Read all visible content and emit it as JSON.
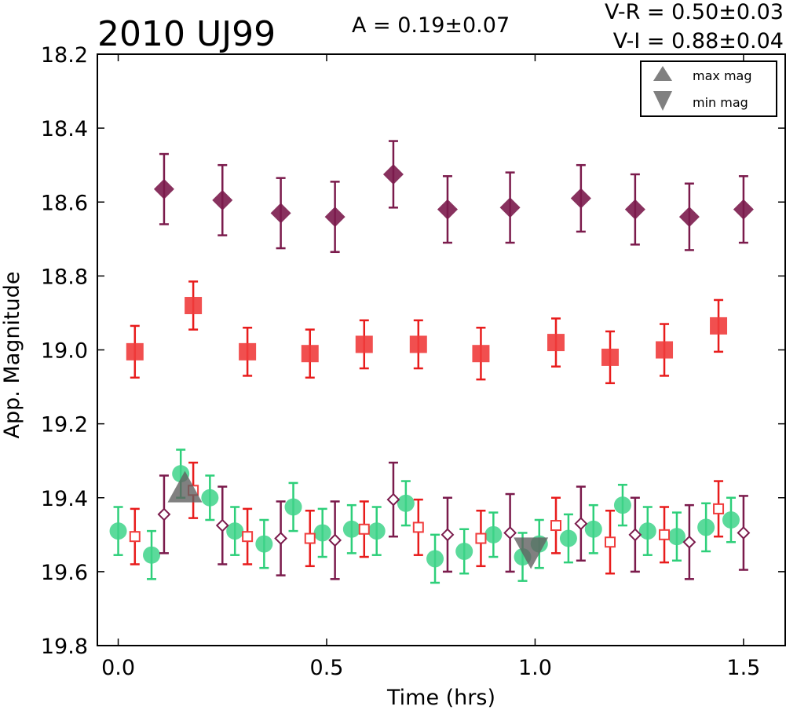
{
  "title": "2010 UJ99",
  "annotations": {
    "amplitude": "A  = 0.19±0.07",
    "vr": "V-R = 0.50±0.03",
    "vi": "V-I  = 0.88±0.04"
  },
  "chart_data": {
    "type": "scatter",
    "title": "2010 UJ99",
    "xlabel": "Time (hrs)",
    "ylabel": "App. Magnitude",
    "xlim": [
      -0.05,
      1.6
    ],
    "ylim": [
      19.8,
      18.2
    ],
    "y_inverted": true,
    "grid": false,
    "xticks": [
      "0.0",
      "0.5",
      "1.0",
      "1.5"
    ],
    "xtick_values": [
      0.0,
      0.5,
      1.0,
      1.5
    ],
    "yticks": [
      "18.2",
      "18.4",
      "18.6",
      "18.8",
      "19.0",
      "19.2",
      "19.4",
      "19.6",
      "19.8"
    ],
    "ytick_values": [
      18.2,
      18.4,
      18.6,
      18.8,
      19.0,
      19.2,
      19.4,
      19.6,
      19.8
    ],
    "legend": {
      "position": "top-right",
      "entries": [
        {
          "label": "max mag",
          "marker": "triangle-up",
          "color": "#808080"
        },
        {
          "label": "min mag",
          "marker": "triangle-down",
          "color": "#808080"
        }
      ]
    },
    "series": [
      {
        "marker": "diamond-filled",
        "color": "#7b1b4c",
        "error_color": "#7b1b4c",
        "x": [
          0.11,
          0.25,
          0.39,
          0.52,
          0.66,
          0.79,
          0.94,
          1.11,
          1.24,
          1.37,
          1.5
        ],
        "y": [
          18.565,
          18.595,
          18.63,
          18.64,
          18.525,
          18.62,
          18.615,
          18.59,
          18.62,
          18.64,
          18.62
        ],
        "err": [
          0.095,
          0.095,
          0.095,
          0.095,
          0.09,
          0.09,
          0.095,
          0.09,
          0.095,
          0.09,
          0.09
        ]
      },
      {
        "marker": "square-filled",
        "color": "#f03c3c",
        "error_color": "#e81c1c",
        "x": [
          0.04,
          0.18,
          0.31,
          0.46,
          0.59,
          0.72,
          0.87,
          1.05,
          1.18,
          1.31,
          1.44
        ],
        "y": [
          19.005,
          18.88,
          19.005,
          19.01,
          18.985,
          18.985,
          19.01,
          18.98,
          19.02,
          19.0,
          18.935
        ],
        "err": [
          0.07,
          0.065,
          0.065,
          0.065,
          0.065,
          0.065,
          0.07,
          0.065,
          0.07,
          0.07,
          0.07
        ]
      },
      {
        "marker": "circle-filled",
        "color": "#3ed389",
        "error_color": "#2ecf7a",
        "x": [
          0.0,
          0.08,
          0.15,
          0.22,
          0.28,
          0.35,
          0.42,
          0.49,
          0.56,
          0.62,
          0.69,
          0.76,
          0.83,
          0.9,
          0.97,
          1.01,
          1.08,
          1.14,
          1.21,
          1.27,
          1.34,
          1.41,
          1.47
        ],
        "y": [
          19.49,
          19.555,
          19.335,
          19.4,
          19.49,
          19.525,
          19.425,
          19.495,
          19.485,
          19.49,
          19.415,
          19.565,
          19.545,
          19.5,
          19.56,
          19.525,
          19.51,
          19.485,
          19.42,
          19.49,
          19.505,
          19.48,
          19.46
        ],
        "err": [
          0.065,
          0.065,
          0.065,
          0.06,
          0.065,
          0.065,
          0.065,
          0.065,
          0.065,
          0.065,
          0.06,
          0.065,
          0.06,
          0.06,
          0.065,
          0.065,
          0.065,
          0.065,
          0.055,
          0.065,
          0.065,
          0.065,
          0.06
        ]
      },
      {
        "marker": "square-open",
        "color": "#f03c3c",
        "error_color": "#e81c1c",
        "x": [
          0.04,
          0.18,
          0.31,
          0.46,
          0.59,
          0.72,
          0.87,
          1.05,
          1.18,
          1.31,
          1.44
        ],
        "y": [
          19.505,
          19.38,
          19.505,
          19.51,
          19.485,
          19.48,
          19.51,
          19.475,
          19.52,
          19.5,
          19.43
        ],
        "err": [
          0.075,
          0.075,
          0.075,
          0.075,
          0.075,
          0.075,
          0.075,
          0.075,
          0.085,
          0.075,
          0.075
        ]
      },
      {
        "marker": "diamond-open",
        "color": "#7b1b4c",
        "error_color": "#7b1b4c",
        "x": [
          0.11,
          0.25,
          0.39,
          0.52,
          0.66,
          0.79,
          0.94,
          1.11,
          1.24,
          1.37,
          1.5
        ],
        "y": [
          19.445,
          19.475,
          19.51,
          19.515,
          19.405,
          19.5,
          19.495,
          19.47,
          19.5,
          19.52,
          19.495
        ],
        "err": [
          0.105,
          0.105,
          0.1,
          0.105,
          0.1,
          0.1,
          0.105,
          0.1,
          0.1,
          0.1,
          0.1
        ]
      }
    ],
    "markers": [
      {
        "label": "max mag",
        "shape": "triangle-up",
        "x": 0.16,
        "y": 19.37,
        "color": "#606060"
      },
      {
        "label": "min mag",
        "shape": "triangle-down",
        "x": 0.99,
        "y": 19.55,
        "color": "#606060"
      }
    ]
  }
}
